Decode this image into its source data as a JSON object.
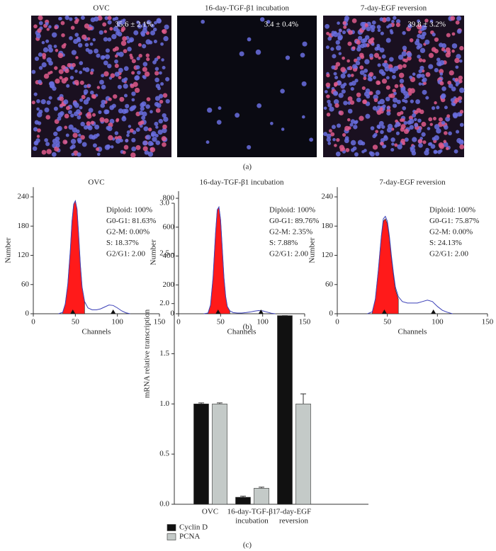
{
  "panel_a": {
    "caption": "(a)",
    "images": [
      {
        "title": "OVC",
        "percent": "35.6 ± 2.1%"
      },
      {
        "title": "16-day-TGF-β1 incubation",
        "percent": "3.4 ± 0.4%"
      },
      {
        "title": "7-day-EGF reversion",
        "percent": "39.8 ± 3.2%"
      }
    ]
  },
  "panel_b": {
    "caption": "(b)"
  },
  "panel_c": {
    "caption": "(c)"
  },
  "chart_data": [
    {
      "type": "histogram-curve",
      "title": "OVC",
      "x_label": "Channels",
      "y_label": "Number",
      "annotations": [
        "Diploid: 100%",
        "G0-G1: 81.63%",
        "G2-M: 0.00%",
        "S: 18.37%",
        "G2/G1: 2.00"
      ],
      "x": [
        30,
        35,
        38,
        41,
        44,
        46,
        48,
        50,
        52,
        54,
        56,
        58,
        61,
        65,
        70,
        75,
        80,
        85,
        90,
        95,
        100,
        105,
        110,
        115
      ],
      "series": [
        {
          "color": "#ff1a1a",
          "values": [
            null,
            3,
            20,
            60,
            130,
            190,
            225,
            232,
            215,
            160,
            100,
            55,
            25,
            null,
            null,
            null,
            null,
            null,
            null,
            null,
            null,
            null,
            null,
            null
          ]
        },
        {
          "color": "#3b40b8",
          "values": [
            0,
            3,
            20,
            60,
            130,
            190,
            225,
            232,
            215,
            160,
            100,
            55,
            25,
            12,
            8,
            8,
            10,
            14,
            18,
            17,
            12,
            6,
            2,
            0
          ]
        }
      ],
      "markers": [
        47,
        95
      ],
      "xlim": [
        0,
        150
      ],
      "xticks": [
        0,
        50,
        100,
        150
      ],
      "ylim": [
        0,
        260
      ],
      "yticks": [
        0,
        60,
        120,
        180,
        240
      ]
    },
    {
      "type": "histogram-curve",
      "title": "16-day-TGF-β1 incubation",
      "x_label": "Channels",
      "y_label": "Number",
      "annotations": [
        "Diploid: 100%",
        "G0-G1: 89.76%",
        "G2-M: 2.35%",
        "S: 7.88%",
        "G2/G1: 2.00"
      ],
      "x": [
        30,
        35,
        38,
        41,
        44,
        46,
        48,
        50,
        52,
        54,
        56,
        58,
        61,
        65,
        70,
        75,
        80,
        85,
        90,
        95,
        100,
        105,
        110,
        115
      ],
      "series": [
        {
          "color": "#ff1a1a",
          "values": [
            null,
            5,
            60,
            250,
            560,
            720,
            740,
            650,
            450,
            250,
            120,
            50,
            20,
            null,
            null,
            null,
            null,
            null,
            null,
            null,
            null,
            null,
            null,
            null
          ]
        },
        {
          "color": "#3b40b8",
          "values": [
            0,
            5,
            60,
            250,
            560,
            720,
            740,
            650,
            450,
            250,
            120,
            50,
            20,
            8,
            5,
            5,
            8,
            12,
            18,
            22,
            20,
            12,
            4,
            0
          ]
        }
      ],
      "markers": [
        47,
        98
      ],
      "xlim": [
        0,
        150
      ],
      "xticks": [
        0,
        50,
        100,
        150
      ],
      "ylim": [
        0,
        850
      ],
      "yticks": [
        0,
        200,
        400,
        600,
        800
      ]
    },
    {
      "type": "histogram-curve",
      "title": "7-day-EGF reversion",
      "x_label": "Channels",
      "y_label": "Number",
      "annotations": [
        "Diploid: 100%",
        "G0-G1: 75.87%",
        "G2-M: 0.00%",
        "S: 24.13%",
        "G2/G1: 2.00"
      ],
      "x": [
        30,
        35,
        38,
        41,
        44,
        46,
        48,
        50,
        52,
        54,
        56,
        58,
        61,
        65,
        70,
        75,
        80,
        85,
        90,
        95,
        100,
        105,
        110,
        115
      ],
      "series": [
        {
          "color": "#ff1a1a",
          "values": [
            null,
            4,
            30,
            90,
            160,
            190,
            195,
            185,
            155,
            115,
            80,
            50,
            30,
            null,
            null,
            null,
            null,
            null,
            null,
            null,
            null,
            null,
            null,
            null
          ]
        },
        {
          "color": "#3b40b8",
          "values": [
            0,
            4,
            30,
            90,
            160,
            195,
            200,
            190,
            160,
            120,
            85,
            55,
            35,
            25,
            22,
            22,
            22,
            25,
            28,
            25,
            15,
            7,
            3,
            0
          ]
        }
      ],
      "markers": [
        47,
        96
      ],
      "xlim": [
        0,
        150
      ],
      "xticks": [
        0,
        50,
        100,
        150
      ],
      "ylim": [
        0,
        260
      ],
      "yticks": [
        0,
        60,
        120,
        180,
        240
      ]
    },
    {
      "type": "bar",
      "y_label": "mRNA relative transcription",
      "categories": [
        [
          "OVC"
        ],
        [
          "16-day-TGF-β1",
          "incubation"
        ],
        [
          "7-day-EGF",
          "reversion"
        ]
      ],
      "series": [
        {
          "name": "Cyclin D",
          "color": "#111111",
          "values": [
            1.0,
            0.07,
            1.88
          ],
          "errors": [
            0.01,
            0.01,
            0
          ]
        },
        {
          "name": "PCNA",
          "color": "#c4cac8",
          "values": [
            1.0,
            0.16,
            1.0
          ],
          "errors": [
            0.01,
            0.01,
            0.1
          ]
        }
      ],
      "ylim": [
        0,
        3
      ],
      "yticks": [
        {
          "value": 0,
          "label": "0.0"
        },
        {
          "value": 0.5,
          "label": "0.5"
        },
        {
          "value": 1,
          "label": "1.0"
        },
        {
          "value": 1.5,
          "label": "1.5"
        },
        {
          "value": 2,
          "label": "2.0"
        },
        {
          "value": 2.5,
          "label": "2.5"
        },
        {
          "value": 3,
          "label": "3.0"
        }
      ],
      "legend": "bottom-left"
    }
  ]
}
